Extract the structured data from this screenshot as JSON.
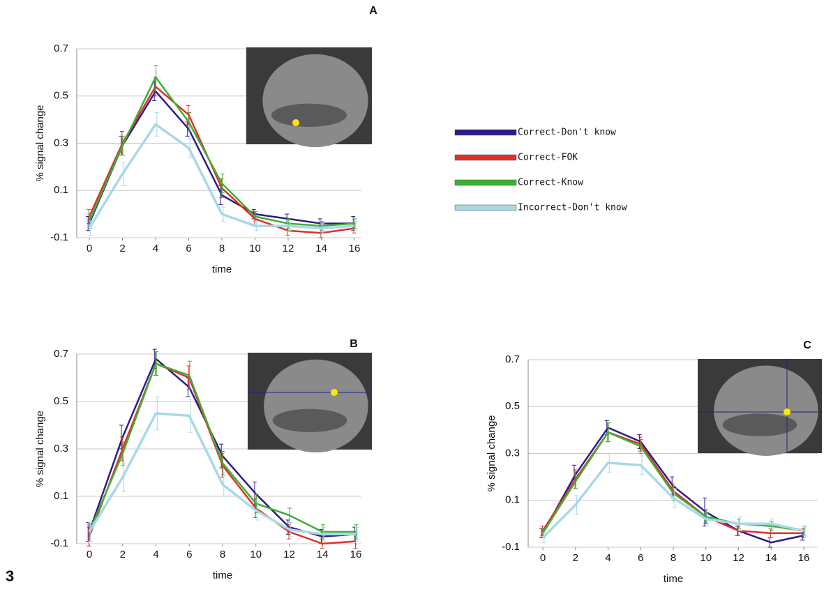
{
  "figure_label": "3",
  "chart_data": [
    {
      "type": "line",
      "title": "A",
      "y_label": "% signal change",
      "x_label": "time",
      "x": [
        0,
        2,
        4,
        6,
        8,
        10,
        12,
        14,
        16
      ],
      "xlim": [
        0,
        16
      ],
      "xticks": [
        0,
        2,
        4,
        6,
        8,
        10,
        12,
        14,
        16
      ],
      "ylim": [
        -0.1,
        0.7
      ],
      "yticks": [
        -0.1,
        0.1,
        0.3,
        0.5,
        0.7
      ],
      "grid": true,
      "series": [
        {
          "name": "Correct-Don't know",
          "color": "#2e1a87",
          "values": [
            -0.04,
            0.29,
            0.52,
            0.36,
            0.08,
            0.0,
            -0.02,
            -0.04,
            -0.04
          ],
          "errors": [
            0.03,
            0.04,
            0.04,
            0.03,
            0.04,
            0.02,
            0.02,
            0.02,
            0.03
          ]
        },
        {
          "name": "Correct-FOK",
          "color": "#e0302a",
          "values": [
            -0.01,
            0.3,
            0.54,
            0.42,
            0.11,
            -0.02,
            -0.07,
            -0.08,
            -0.06
          ],
          "errors": [
            0.03,
            0.05,
            0.04,
            0.04,
            0.04,
            0.03,
            0.02,
            0.02,
            0.02
          ]
        },
        {
          "name": "Correct-Know",
          "color": "#3cb034",
          "values": [
            -0.03,
            0.29,
            0.58,
            0.39,
            0.13,
            -0.01,
            -0.04,
            -0.05,
            -0.04
          ],
          "errors": [
            0.03,
            0.04,
            0.05,
            0.04,
            0.04,
            0.02,
            0.02,
            0.02,
            0.02
          ]
        },
        {
          "name": "Incorrect-Don't know",
          "color": "#a8d8e8",
          "values": [
            -0.06,
            0.17,
            0.38,
            0.28,
            0.0,
            -0.05,
            -0.05,
            -0.06,
            -0.05
          ],
          "errors": [
            0.03,
            0.05,
            0.05,
            0.04,
            0.03,
            0.02,
            0.02,
            0.02,
            0.02
          ]
        }
      ]
    },
    {
      "type": "line",
      "title": "B",
      "y_label": "% signal change",
      "x_label": "time",
      "x": [
        0,
        2,
        4,
        6,
        8,
        10,
        12,
        14,
        16
      ],
      "xlim": [
        0,
        16
      ],
      "xticks": [
        0,
        2,
        4,
        6,
        8,
        10,
        12,
        14,
        16
      ],
      "ylim": [
        -0.1,
        0.7
      ],
      "yticks": [
        -0.1,
        0.1,
        0.3,
        0.5,
        0.7
      ],
      "grid": true,
      "series": [
        {
          "name": "Correct-Don't know",
          "color": "#2e1a87",
          "values": [
            -0.05,
            0.35,
            0.68,
            0.56,
            0.27,
            0.11,
            -0.03,
            -0.07,
            -0.06
          ],
          "errors": [
            0.04,
            0.05,
            0.04,
            0.04,
            0.05,
            0.05,
            0.03,
            0.03,
            0.03
          ]
        },
        {
          "name": "Correct-FOK",
          "color": "#e0302a",
          "values": [
            -0.07,
            0.3,
            0.66,
            0.6,
            0.23,
            0.05,
            -0.05,
            -0.1,
            -0.09
          ],
          "errors": [
            0.04,
            0.05,
            0.05,
            0.05,
            0.05,
            0.04,
            0.03,
            0.02,
            0.03
          ]
        },
        {
          "name": "Correct-Know",
          "color": "#3cb034",
          "values": [
            -0.05,
            0.28,
            0.66,
            0.61,
            0.24,
            0.07,
            0.02,
            -0.05,
            -0.05
          ],
          "errors": [
            0.04,
            0.05,
            0.05,
            0.06,
            0.05,
            0.04,
            0.03,
            0.03,
            0.03
          ]
        },
        {
          "name": "Incorrect-Don't know",
          "color": "#a8d8e8",
          "values": [
            -0.05,
            0.18,
            0.45,
            0.44,
            0.15,
            0.04,
            -0.04,
            -0.06,
            -0.06
          ],
          "errors": [
            0.04,
            0.06,
            0.07,
            0.07,
            0.05,
            0.04,
            0.03,
            0.03,
            0.03
          ]
        }
      ]
    },
    {
      "type": "line",
      "title": "C",
      "y_label": "% signal change",
      "x_label": "time",
      "x": [
        0,
        2,
        4,
        6,
        8,
        10,
        12,
        14,
        16
      ],
      "xlim": [
        0,
        16
      ],
      "xticks": [
        0,
        2,
        4,
        6,
        8,
        10,
        12,
        14,
        16
      ],
      "ylim": [
        -0.1,
        0.7
      ],
      "yticks": [
        -0.1,
        0.1,
        0.3,
        0.5,
        0.7
      ],
      "grid": true,
      "series": [
        {
          "name": "Correct-Don't know",
          "color": "#2e1a87",
          "values": [
            -0.04,
            0.21,
            0.41,
            0.35,
            0.16,
            0.05,
            -0.03,
            -0.08,
            -0.05
          ],
          "errors": [
            0.02,
            0.04,
            0.03,
            0.03,
            0.04,
            0.06,
            0.02,
            0.02,
            0.02
          ]
        },
        {
          "name": "Correct-FOK",
          "color": "#e0302a",
          "values": [
            -0.03,
            0.19,
            0.39,
            0.34,
            0.14,
            0.03,
            -0.03,
            -0.04,
            -0.04
          ],
          "errors": [
            0.02,
            0.04,
            0.04,
            0.03,
            0.03,
            0.03,
            0.02,
            0.02,
            0.02
          ]
        },
        {
          "name": "Correct-Know",
          "color": "#3cb034",
          "values": [
            -0.04,
            0.18,
            0.39,
            0.33,
            0.13,
            0.03,
            0.0,
            -0.01,
            -0.03
          ],
          "errors": [
            0.02,
            0.03,
            0.04,
            0.03,
            0.03,
            0.03,
            0.02,
            0.02,
            0.02
          ]
        },
        {
          "name": "Incorrect-Don't know",
          "color": "#a8d8e8",
          "values": [
            -0.06,
            0.08,
            0.26,
            0.25,
            0.11,
            0.02,
            0.0,
            0.0,
            -0.03
          ],
          "errors": [
            0.02,
            0.04,
            0.04,
            0.04,
            0.04,
            0.03,
            0.03,
            0.02,
            0.02
          ]
        }
      ]
    }
  ]
}
